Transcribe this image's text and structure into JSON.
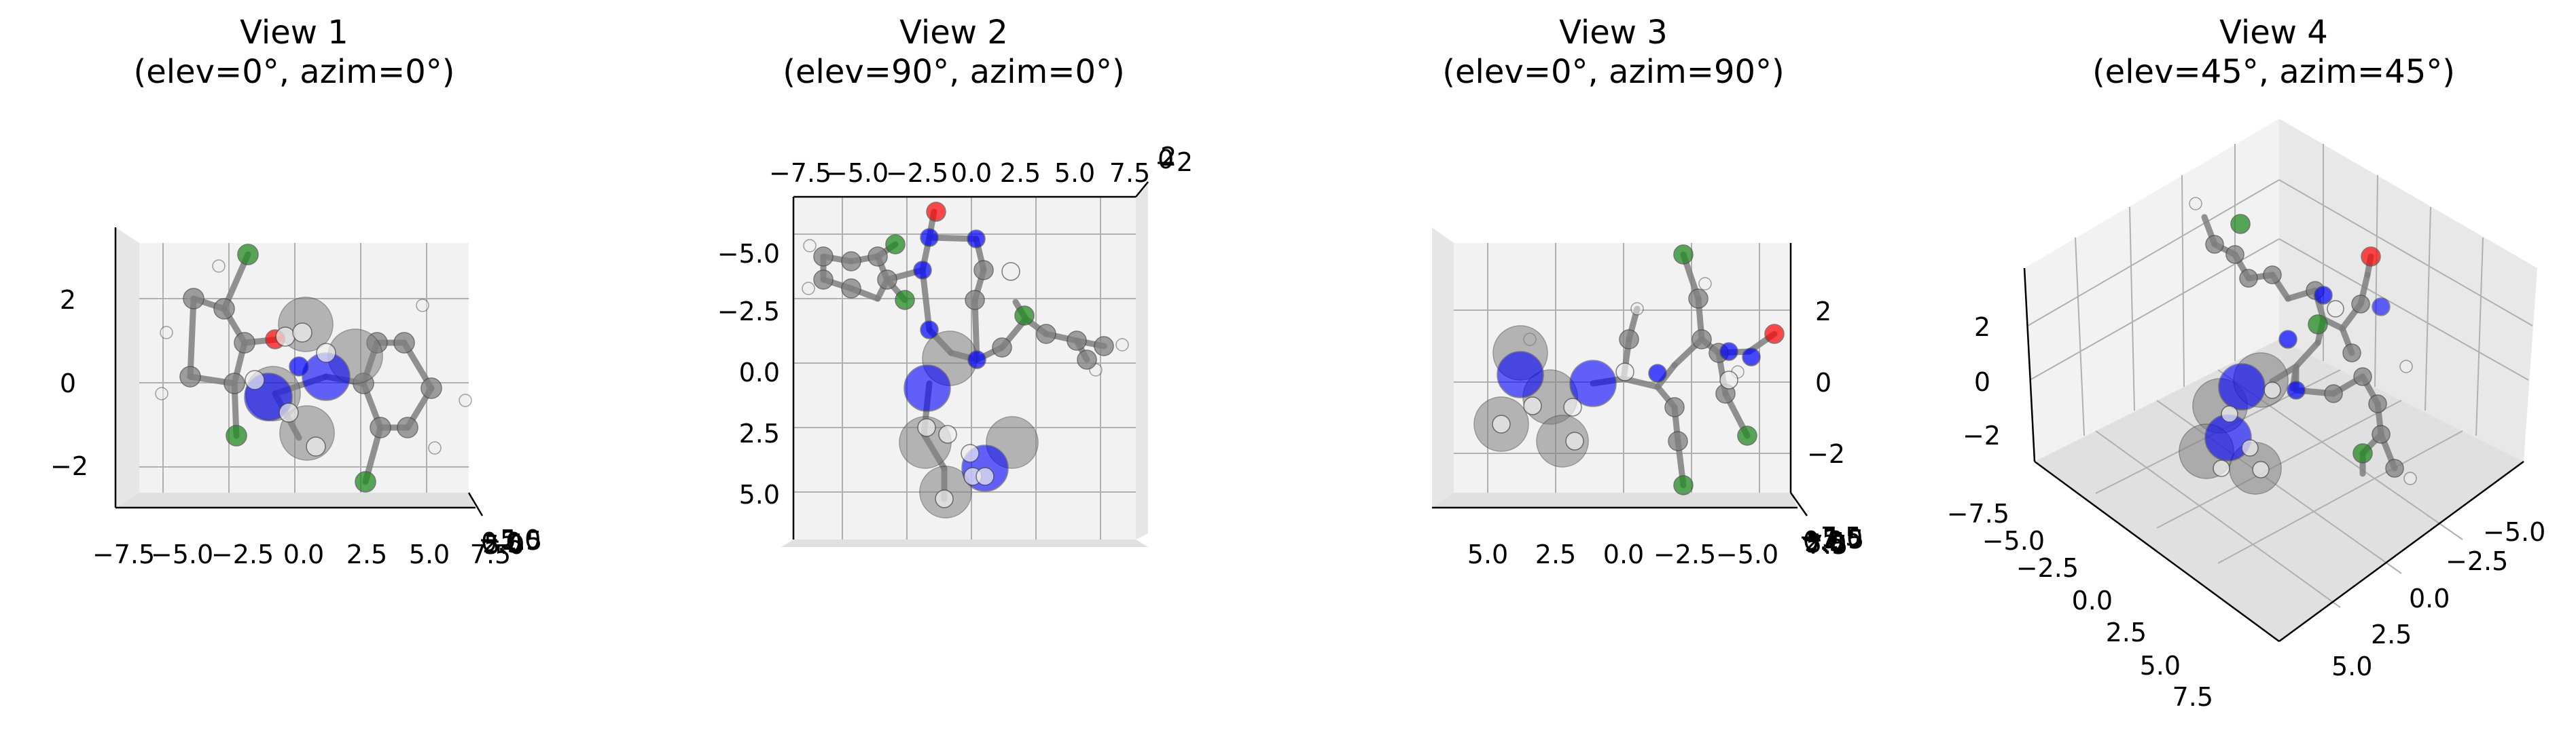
{
  "chart_data": {
    "type": "scatter",
    "subtype": "3d-molecule-views",
    "atom_colors": {
      "C": "#808080",
      "N": "#0000ff",
      "O": "#ff0000",
      "Cl": "#228b22",
      "H": "#f0f0f0"
    },
    "panels": [
      {
        "title_line1": "View 1",
        "title_line2": "(elev=0°, azim=0°)",
        "elev": 0,
        "azim": 0,
        "x_ticks": [
          "−7.5",
          "−5.0",
          "−2.5",
          "0.0",
          "2.5",
          "5.0",
          "7.5"
        ],
        "y_ticks": [
          "2",
          "0",
          "−2"
        ],
        "depth_ticks": [
          "−5.0",
          "−2.5",
          "0.0",
          "2.5",
          "5.0"
        ]
      },
      {
        "title_line1": "View 2",
        "title_line2": "(elev=90°, azim=0°)",
        "elev": 90,
        "azim": 0,
        "x_ticks": [
          "−7.5",
          "−5.0",
          "−2.5",
          "0.0",
          "2.5",
          "5.0",
          "7.5"
        ],
        "y_ticks": [
          "−5.0",
          "−2.5",
          "0.0",
          "2.5",
          "5.0"
        ],
        "depth_ticks": [
          "−2",
          "0",
          "2"
        ]
      },
      {
        "title_line1": "View 3",
        "title_line2": "(elev=0°, azim=90°)",
        "elev": 0,
        "azim": 90,
        "x_ticks": [
          "5.0",
          "2.5",
          "0.0",
          "−2.5",
          "−5.0"
        ],
        "y_ticks": [
          "2",
          "0",
          "−2"
        ],
        "depth_ticks": [
          "−7.5",
          "−5.0",
          "−2.5",
          "0.0",
          "2.5",
          "5.0",
          "7.5"
        ]
      },
      {
        "title_line1": "View 4",
        "title_line2": "(elev=45°, azim=45°)",
        "elev": 45,
        "azim": 45,
        "x_ticks": [
          "−7.5",
          "−5.0",
          "−2.5",
          "0.0",
          "2.5",
          "5.0",
          "7.5"
        ],
        "y_ticks": [
          "−5.0",
          "−2.5",
          "0.0",
          "2.5",
          "5.0"
        ],
        "z_ticks": [
          "2",
          "0",
          "−2"
        ]
      }
    ]
  }
}
